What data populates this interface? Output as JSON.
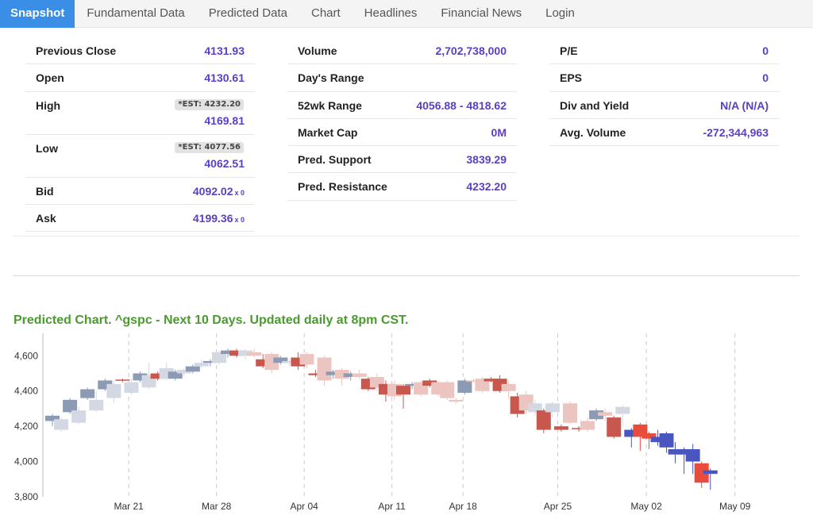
{
  "tabs": [
    "Snapshot",
    "Fundamental Data",
    "Predicted Data",
    "Chart",
    "Headlines",
    "Financial News",
    "Login"
  ],
  "active_tab": 0,
  "col1": [
    {
      "label": "Previous Close",
      "value": "4131.93"
    },
    {
      "label": "Open",
      "value": "4130.61"
    },
    {
      "label": "High",
      "est": "*EST: 4232.20",
      "value": "4169.81"
    },
    {
      "label": "Low",
      "est": "*EST: 4077.56",
      "value": "4062.51"
    },
    {
      "label": "Bid",
      "value": "4092.02",
      "size": "x 0"
    },
    {
      "label": "Ask",
      "value": "4199.36",
      "size": "x 0"
    }
  ],
  "col2": [
    {
      "label": "Volume",
      "value": "2,702,738,000"
    },
    {
      "label": "Day's Range",
      "value": ""
    },
    {
      "label": "52wk Range",
      "value": "4056.88 - 4818.62"
    },
    {
      "label": "Market Cap",
      "value": "0M"
    },
    {
      "label": "Pred. Support",
      "value": "3839.29"
    },
    {
      "label": "Pred. Resistance",
      "value": "4232.20"
    }
  ],
  "col3": [
    {
      "label": "P/E",
      "value": "0"
    },
    {
      "label": "EPS",
      "value": "0"
    },
    {
      "label": "Div and Yield",
      "value": "N/A (N/A)"
    },
    {
      "label": "Avg. Volume",
      "value": "-272,344,963"
    }
  ],
  "chart_title": "Predicted Chart. ^gspc - Next 10 Days. Updated daily at 8pm CST.",
  "chart_data": {
    "type": "candlestick",
    "ylim": [
      3800,
      4750
    ],
    "yticks": [
      3800,
      4000,
      4200,
      4400,
      4600
    ],
    "ytick_labels": [
      "3,800",
      "4,000",
      "4,200",
      "4,400",
      "4,600"
    ],
    "xtick_labels": [
      "Mar 21",
      "Mar 28",
      "Apr 04",
      "Apr 11",
      "Apr 18",
      "Apr 25",
      "May 02",
      "May 09"
    ],
    "xtick_index": [
      8.7,
      18.7,
      28.7,
      38.7,
      46.8,
      57.6,
      67.7,
      77.8
    ],
    "colors": {
      "hist_up": "#8c9ab4",
      "hist_up_pred": "#d3d8e2",
      "hist_down": "#c8584e",
      "hist_down_pred": "#ecc4c0",
      "pred_up": "#4a56c0",
      "pred_down": "#e74c3c"
    },
    "candles": [
      {
        "o": 4230,
        "h": 4270,
        "l": 4200,
        "c": 4260,
        "t": "up"
      },
      {
        "o": 4180,
        "h": 4250,
        "l": 4170,
        "c": 4240,
        "t": "up_p"
      },
      {
        "o": 4280,
        "h": 4360,
        "l": 4270,
        "c": 4350,
        "t": "up"
      },
      {
        "o": 4220,
        "h": 4310,
        "l": 4210,
        "c": 4290,
        "t": "up_p"
      },
      {
        "o": 4360,
        "h": 4420,
        "l": 4350,
        "c": 4410,
        "t": "up"
      },
      {
        "o": 4290,
        "h": 4400,
        "l": 4280,
        "c": 4350,
        "t": "up_p"
      },
      {
        "o": 4410,
        "h": 4470,
        "l": 4400,
        "c": 4460,
        "t": "up"
      },
      {
        "o": 4360,
        "h": 4460,
        "l": 4330,
        "c": 4440,
        "t": "up_p"
      },
      {
        "o": 4460,
        "h": 4470,
        "l": 4450,
        "c": 4465,
        "t": "dn"
      },
      {
        "o": 4390,
        "h": 4470,
        "l": 4380,
        "c": 4450,
        "t": "up_p"
      },
      {
        "o": 4460,
        "h": 4510,
        "l": 4450,
        "c": 4500,
        "t": "up"
      },
      {
        "o": 4420,
        "h": 4560,
        "l": 4410,
        "c": 4490,
        "t": "up_p"
      },
      {
        "o": 4500,
        "h": 4510,
        "l": 4460,
        "c": 4470,
        "t": "dn"
      },
      {
        "o": 4470,
        "h": 4560,
        "l": 4460,
        "c": 4530,
        "t": "up_p"
      },
      {
        "o": 4470,
        "h": 4520,
        "l": 4460,
        "c": 4510,
        "t": "up"
      },
      {
        "o": 4500,
        "h": 4530,
        "l": 4480,
        "c": 4520,
        "t": "up_p"
      },
      {
        "o": 4510,
        "h": 4550,
        "l": 4500,
        "c": 4540,
        "t": "up"
      },
      {
        "o": 4540,
        "h": 4580,
        "l": 4530,
        "c": 4560,
        "t": "up_p"
      },
      {
        "o": 4560,
        "h": 4580,
        "l": 4540,
        "c": 4570,
        "t": "up"
      },
      {
        "o": 4560,
        "h": 4630,
        "l": 4550,
        "c": 4620,
        "t": "up_p"
      },
      {
        "o": 4610,
        "h": 4640,
        "l": 4590,
        "c": 4630,
        "t": "up"
      },
      {
        "o": 4630,
        "h": 4640,
        "l": 4590,
        "c": 4600,
        "t": "dn"
      },
      {
        "o": 4600,
        "h": 4640,
        "l": 4580,
        "c": 4630,
        "t": "up_p"
      },
      {
        "o": 4620,
        "h": 4640,
        "l": 4590,
        "c": 4600,
        "t": "dn_p"
      },
      {
        "o": 4580,
        "h": 4610,
        "l": 4530,
        "c": 4540,
        "t": "dn"
      },
      {
        "o": 4610,
        "h": 4620,
        "l": 4500,
        "c": 4520,
        "t": "dn_p"
      },
      {
        "o": 4560,
        "h": 4600,
        "l": 4550,
        "c": 4590,
        "t": "up"
      },
      {
        "o": 4560,
        "h": 4580,
        "l": 4540,
        "c": 4570,
        "t": "up_p"
      },
      {
        "o": 4590,
        "h": 4620,
        "l": 4520,
        "c": 4540,
        "t": "dn"
      },
      {
        "o": 4610,
        "h": 4620,
        "l": 4530,
        "c": 4550,
        "t": "dn_p"
      },
      {
        "o": 4500,
        "h": 4520,
        "l": 4480,
        "c": 4490,
        "t": "dn"
      },
      {
        "o": 4590,
        "h": 4600,
        "l": 4430,
        "c": 4460,
        "t": "dn_p"
      },
      {
        "o": 4490,
        "h": 4520,
        "l": 4470,
        "c": 4510,
        "t": "up"
      },
      {
        "o": 4520,
        "h": 4530,
        "l": 4430,
        "c": 4470,
        "t": "dn_p"
      },
      {
        "o": 4480,
        "h": 4510,
        "l": 4460,
        "c": 4500,
        "t": "up"
      },
      {
        "o": 4500,
        "h": 4520,
        "l": 4470,
        "c": 4480,
        "t": "dn_p"
      },
      {
        "o": 4470,
        "h": 4480,
        "l": 4400,
        "c": 4410,
        "t": "dn"
      },
      {
        "o": 4480,
        "h": 4500,
        "l": 4400,
        "c": 4420,
        "t": "dn_p"
      },
      {
        "o": 4440,
        "h": 4460,
        "l": 4340,
        "c": 4380,
        "t": "dn"
      },
      {
        "o": 4440,
        "h": 4460,
        "l": 4350,
        "c": 4370,
        "t": "dn_p"
      },
      {
        "o": 4430,
        "h": 4440,
        "l": 4300,
        "c": 4380,
        "t": "dn"
      },
      {
        "o": 4430,
        "h": 4450,
        "l": 4410,
        "c": 4440,
        "t": "up"
      },
      {
        "o": 4450,
        "h": 4460,
        "l": 4370,
        "c": 4380,
        "t": "dn_p"
      },
      {
        "o": 4460,
        "h": 4470,
        "l": 4420,
        "c": 4430,
        "t": "dn"
      },
      {
        "o": 4450,
        "h": 4460,
        "l": 4370,
        "c": 4380,
        "t": "dn_p"
      },
      {
        "o": 4450,
        "h": 4460,
        "l": 4350,
        "c": 4360,
        "t": "dn_p"
      },
      {
        "o": 4350,
        "h": 4360,
        "l": 4330,
        "c": 4340,
        "t": "dn_p"
      },
      {
        "o": 4390,
        "h": 4470,
        "l": 4380,
        "c": 4460,
        "t": "up"
      },
      {
        "o": 4460,
        "h": 4470,
        "l": 4450,
        "c": 4460,
        "t": "dn_p"
      },
      {
        "o": 4470,
        "h": 4480,
        "l": 4390,
        "c": 4400,
        "t": "dn_p"
      },
      {
        "o": 4470,
        "h": 4480,
        "l": 4450,
        "c": 4455,
        "t": "dn"
      },
      {
        "o": 4470,
        "h": 4490,
        "l": 4390,
        "c": 4400,
        "t": "dn"
      },
      {
        "o": 4440,
        "h": 4460,
        "l": 4360,
        "c": 4400,
        "t": "dn_p"
      },
      {
        "o": 4370,
        "h": 4390,
        "l": 4250,
        "c": 4270,
        "t": "dn"
      },
      {
        "o": 4380,
        "h": 4400,
        "l": 4270,
        "c": 4290,
        "t": "dn_p"
      },
      {
        "o": 4330,
        "h": 4350,
        "l": 4260,
        "c": 4280,
        "t": "up_p"
      },
      {
        "o": 4290,
        "h": 4300,
        "l": 4160,
        "c": 4180,
        "t": "dn"
      },
      {
        "o": 4330,
        "h": 4340,
        "l": 4250,
        "c": 4280,
        "t": "up_p"
      },
      {
        "o": 4200,
        "h": 4210,
        "l": 4170,
        "c": 4180,
        "t": "dn"
      },
      {
        "o": 4330,
        "h": 4340,
        "l": 4210,
        "c": 4220,
        "t": "dn_p"
      },
      {
        "o": 4190,
        "h": 4200,
        "l": 4170,
        "c": 4185,
        "t": "dn"
      },
      {
        "o": 4230,
        "h": 4250,
        "l": 4170,
        "c": 4180,
        "t": "dn_p"
      },
      {
        "o": 4240,
        "h": 4300,
        "l": 4230,
        "c": 4290,
        "t": "up"
      },
      {
        "o": 4280,
        "h": 4300,
        "l": 4230,
        "c": 4260,
        "t": "dn_p"
      },
      {
        "o": 4250,
        "h": 4260,
        "l": 4130,
        "c": 4140,
        "t": "dn"
      },
      {
        "o": 4270,
        "h": 4320,
        "l": 4200,
        "c": 4310,
        "t": "up_p"
      },
      {
        "o": 4140,
        "h": 4190,
        "l": 4080,
        "c": 4180,
        "t": "up_pr"
      },
      {
        "o": 4210,
        "h": 4220,
        "l": 4060,
        "c": 4140,
        "t": "dn_pr"
      },
      {
        "o": 4160,
        "h": 4170,
        "l": 4070,
        "c": 4130,
        "t": "dn_pr"
      },
      {
        "o": 4110,
        "h": 4180,
        "l": 4090,
        "c": 4140,
        "t": "up_pr"
      },
      {
        "o": 4080,
        "h": 4170,
        "l": 4050,
        "c": 4160,
        "t": "up_pr"
      },
      {
        "o": 4040,
        "h": 4110,
        "l": 3990,
        "c": 4070,
        "t": "up_pr"
      },
      {
        "o": 4040,
        "h": 4080,
        "l": 3930,
        "c": 4070,
        "t": "up_pr"
      },
      {
        "o": 4000,
        "h": 4100,
        "l": 3930,
        "c": 4070,
        "t": "up_pr"
      },
      {
        "o": 3990,
        "h": 4000,
        "l": 3850,
        "c": 3880,
        "t": "dn_pr"
      },
      {
        "o": 3930,
        "h": 3960,
        "l": 3840,
        "c": 3950,
        "t": "up_pr"
      }
    ]
  }
}
